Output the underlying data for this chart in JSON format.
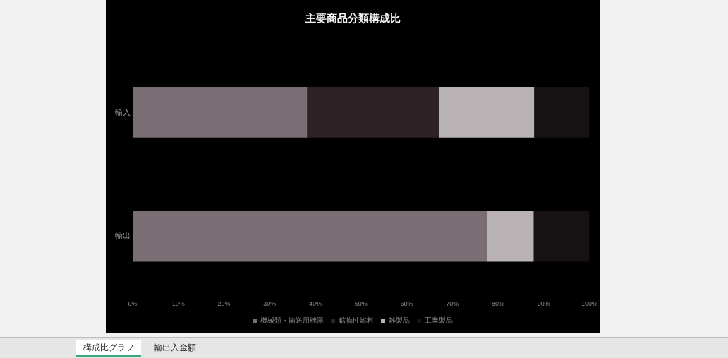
{
  "chart_data": {
    "type": "bar",
    "title": "主要商品分類構成比",
    "orientation": "horizontal",
    "stacked": true,
    "categories": [
      "輸入",
      "輸出"
    ],
    "series": [
      {
        "name": "機械類・輸送用機器",
        "color": "#7a6e74",
        "values": [
          38.2,
          77.6
        ]
      },
      {
        "name": "鉱物性燃料",
        "color": "#2e2226",
        "values": [
          28.9,
          0
        ]
      },
      {
        "name": "雑製品",
        "color": "#b8b2b4",
        "values": [
          20.8,
          10.2
        ]
      },
      {
        "name": "工業製品",
        "color": "#161113",
        "values": [
          12.1,
          12.2
        ]
      }
    ],
    "xlim": [
      0,
      100
    ],
    "xticks": [
      {
        "value": 0,
        "label": "0%"
      },
      {
        "value": 10,
        "label": "10%"
      },
      {
        "value": 20,
        "label": "20%"
      },
      {
        "value": 30,
        "label": "30%"
      },
      {
        "value": 40,
        "label": "40%"
      },
      {
        "value": 50,
        "label": "50%"
      },
      {
        "value": 60,
        "label": "60%"
      },
      {
        "value": 70,
        "label": "70%"
      },
      {
        "value": 80,
        "label": "80%"
      },
      {
        "value": 90,
        "label": "90%"
      },
      {
        "value": 100,
        "label": "100%"
      }
    ],
    "grid": false,
    "legend": "bottom",
    "annotations": [
      "構成比グラフ",
      "輸出入金額"
    ]
  }
}
